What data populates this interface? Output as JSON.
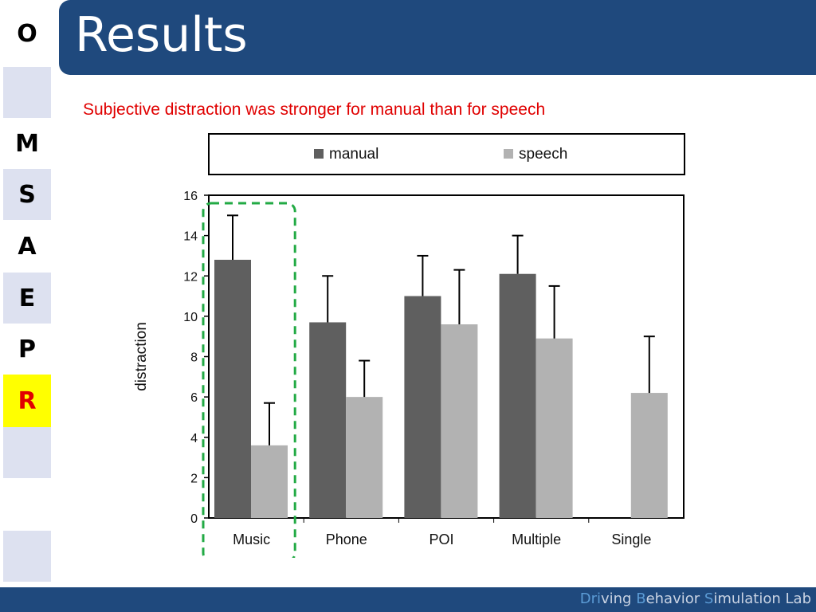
{
  "sidebar": {
    "items": [
      {
        "label": "O",
        "bg": "#ffffff",
        "color": "#000000"
      },
      {
        "label": "",
        "bg": "#dde1f0",
        "color": "#000000"
      },
      {
        "label": "M",
        "bg": "#ffffff",
        "color": "#000000"
      },
      {
        "label": "S",
        "bg": "#dde1f0",
        "color": "#000000"
      },
      {
        "label": "A",
        "bg": "#ffffff",
        "color": "#000000"
      },
      {
        "label": "E",
        "bg": "#dde1f0",
        "color": "#000000"
      },
      {
        "label": "P",
        "bg": "#ffffff",
        "color": "#000000"
      },
      {
        "label": "R",
        "bg": "#ffff00",
        "color": "#e00000"
      },
      {
        "label": "",
        "bg": "#dde1f0",
        "color": "#000000"
      },
      {
        "label": "",
        "bg": "#ffffff",
        "color": "#000000"
      },
      {
        "label": "",
        "bg": "#dde1f0",
        "color": "#000000"
      },
      {
        "label": "",
        "bg": "#ffffff",
        "color": "#000000"
      }
    ]
  },
  "header": {
    "title": "Results"
  },
  "subtitle": "Subjective distraction was stronger for manual than for speech",
  "footer": {
    "parts": [
      "Dri",
      "ving ",
      "B",
      "ehavior ",
      "S",
      "imulation Lab"
    ]
  },
  "colors": {
    "title_bar": "#1f497d",
    "manual": "#5f5f5f",
    "speech": "#b2b2b2",
    "highlight": "#22aa44",
    "subtitle": "#e00000"
  },
  "chart_data": {
    "type": "bar",
    "categories": [
      "Music",
      "Phone",
      "POI",
      "Multiple",
      "Single"
    ],
    "series": [
      {
        "name": "manual",
        "values": [
          12.8,
          9.7,
          11.0,
          12.1,
          null
        ],
        "errors": [
          2.2,
          2.3,
          2.0,
          1.9,
          null
        ]
      },
      {
        "name": "speech",
        "values": [
          3.6,
          6.0,
          9.6,
          8.9,
          6.2
        ],
        "errors": [
          2.1,
          1.8,
          2.7,
          2.6,
          2.8
        ]
      }
    ],
    "title": "",
    "xlabel": "",
    "ylabel": "distraction",
    "ylim": [
      0,
      16
    ],
    "yticks": [
      0,
      2,
      4,
      6,
      8,
      10,
      12,
      14,
      16
    ],
    "legend": "top",
    "grid": false,
    "highlight_category": "Music"
  }
}
